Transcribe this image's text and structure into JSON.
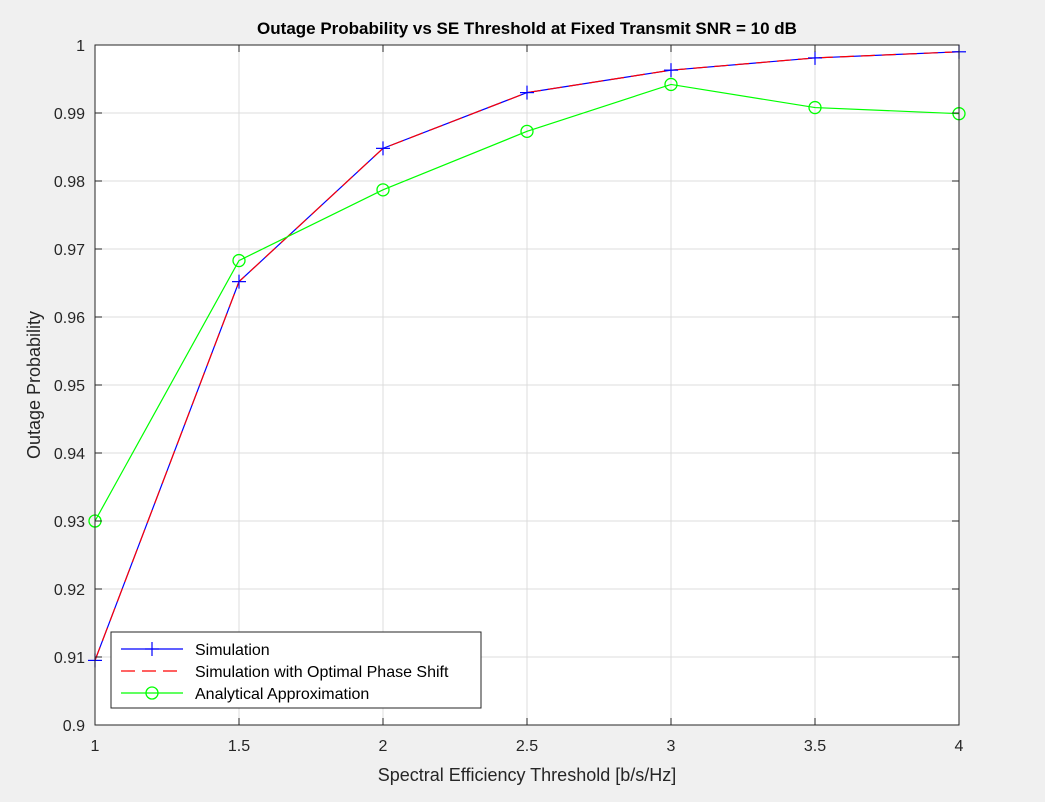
{
  "chart_data": {
    "type": "line",
    "title": "Outage Probability vs SE Threshold at Fixed Transmit SNR = 10 dB",
    "xlabel": "Spectral Efficiency Threshold [b/s/Hz]",
    "ylabel": "Outage Probability",
    "xlim": [
      1,
      4
    ],
    "ylim": [
      0.9,
      1
    ],
    "xticks": [
      1,
      1.5,
      2,
      2.5,
      3,
      3.5,
      4
    ],
    "xtick_labels": [
      "1",
      "1.5",
      "2",
      "2.5",
      "3",
      "3.5",
      "4"
    ],
    "yticks": [
      0.9,
      0.91,
      0.92,
      0.93,
      0.94,
      0.95,
      0.96,
      0.97,
      0.98,
      0.99,
      1
    ],
    "ytick_labels": [
      "0.9",
      "0.91",
      "0.92",
      "0.93",
      "0.94",
      "0.95",
      "0.96",
      "0.97",
      "0.98",
      "0.99",
      "1"
    ],
    "grid": true,
    "legend_position": "bottom-left",
    "x": [
      1,
      1.5,
      2,
      2.5,
      3,
      3.5,
      4
    ],
    "series": [
      {
        "name": "Simulation",
        "values": [
          0.9095,
          0.9652,
          0.9848,
          0.993,
          0.9963,
          0.9981,
          0.999
        ],
        "color": "#0000ff",
        "line_style": "solid",
        "marker": "plus"
      },
      {
        "name": "Simulation with Optimal Phase Shift",
        "values": [
          0.9095,
          0.9652,
          0.9848,
          0.993,
          0.9963,
          0.9981,
          0.999
        ],
        "color": "#ff0000",
        "line_style": "dashed",
        "marker": "none"
      },
      {
        "name": "Analytical Approximation",
        "values": [
          0.93,
          0.9683,
          0.9787,
          0.9873,
          0.9942,
          0.9908,
          0.9899
        ],
        "color": "#00ff00",
        "line_style": "solid",
        "marker": "circle"
      }
    ]
  }
}
